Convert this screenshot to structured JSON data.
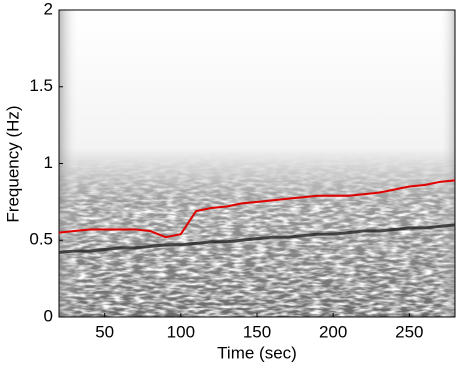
{
  "chart_data": {
    "type": "line",
    "xlabel": "Time (sec)",
    "ylabel": "Frequency (Hz)",
    "x": [
      20,
      30,
      40,
      50,
      60,
      70,
      80,
      90,
      100,
      110,
      120,
      130,
      140,
      150,
      160,
      170,
      180,
      190,
      200,
      210,
      220,
      230,
      240,
      250,
      260,
      270,
      280
    ],
    "series": [
      {
        "color": "#e00000",
        "values": [
          0.55,
          0.56,
          0.57,
          0.57,
          0.57,
          0.57,
          0.56,
          0.52,
          0.54,
          0.69,
          0.71,
          0.72,
          0.74,
          0.75,
          0.76,
          0.77,
          0.78,
          0.79,
          0.79,
          0.79,
          0.8,
          0.81,
          0.83,
          0.85,
          0.86,
          0.88,
          0.89
        ]
      },
      {
        "color": "#222222",
        "values": [
          0.42,
          0.43,
          0.43,
          0.44,
          0.45,
          0.45,
          0.46,
          0.47,
          0.47,
          0.48,
          0.49,
          0.49,
          0.5,
          0.51,
          0.52,
          0.52,
          0.53,
          0.54,
          0.54,
          0.55,
          0.56,
          0.56,
          0.57,
          0.58,
          0.58,
          0.59,
          0.6
        ]
      }
    ],
    "xlim": [
      20,
      280
    ],
    "xticks": [
      50,
      100,
      150,
      200,
      250
    ],
    "ylim": [
      0,
      2
    ],
    "yticks": [
      0,
      0.5,
      1,
      1.5,
      2
    ]
  }
}
